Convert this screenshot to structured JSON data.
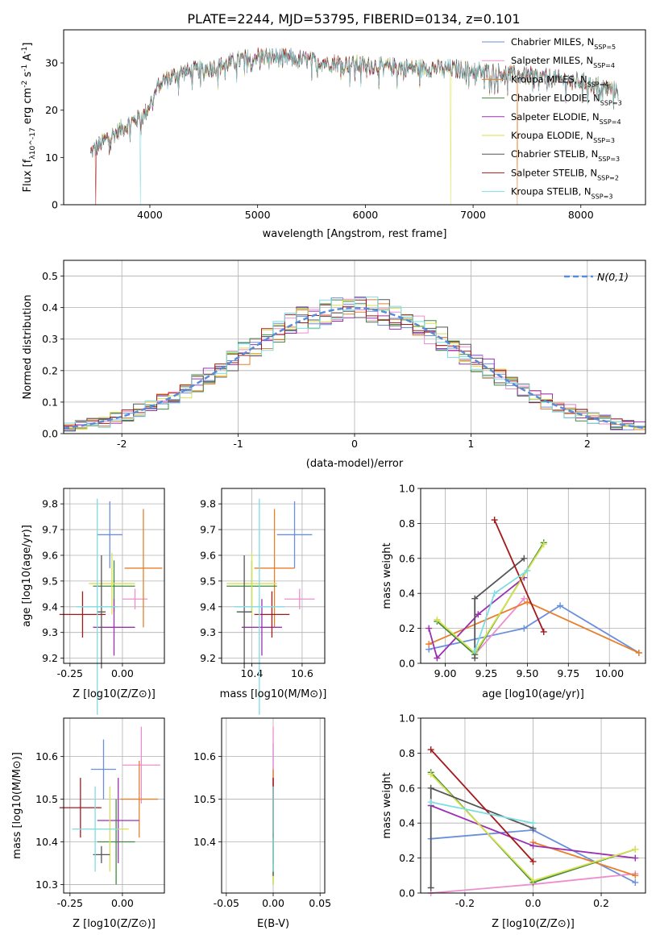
{
  "figure_title": "PLATE=2244, MJD=53795, FIBERID=0134, z=0.101",
  "colors": [
    "#6a8fdd",
    "#ee8ecf",
    "#e87f2a",
    "#3f8a3f",
    "#9b30b0",
    "#d8e24f",
    "#555555",
    "#a5191c",
    "#7edde3"
  ],
  "chart_data": [
    {
      "type": "line",
      "id": "spectrum",
      "xlabel": "wavelength [Angstrom, rest frame]",
      "ylabel": "Flux [f_λ10^-17 erg cm^-2 s^-1 A^-1]",
      "xlim": [
        3200,
        8600
      ],
      "ylim": [
        0,
        37
      ],
      "xticks": [
        4000,
        5000,
        6000,
        7000,
        8000
      ],
      "yticks": [
        0,
        10,
        20,
        30
      ],
      "legend_position": "top-right",
      "continuum_knots_x": [
        3450,
        3600,
        3800,
        3950,
        4100,
        4300,
        4600,
        4800,
        5000,
        5300,
        5600,
        6000,
        6400,
        6800,
        7200,
        7600,
        8000,
        8350
      ],
      "continuum_knots_y": [
        11,
        14,
        17,
        19,
        26,
        28,
        29,
        30.5,
        31.5,
        31,
        30.2,
        29.5,
        29,
        28.8,
        28,
        27,
        26,
        24
      ],
      "series": [
        {
          "name": "Chabrier MILES, N_SSP=5"
        },
        {
          "name": "Salpeter MILES, N_SSP=4"
        },
        {
          "name": "Kroupa MILES, N_SSP=4"
        },
        {
          "name": "Chabrier ELODIE, N_SSP=3"
        },
        {
          "name": "Salpeter ELODIE, N_SSP=4"
        },
        {
          "name": "Kroupa ELODIE, N_SSP=3"
        },
        {
          "name": "Chabrier STELIB, N_SSP=3"
        },
        {
          "name": "Salpeter STELIB, N_SSP=2"
        },
        {
          "name": "Kroupa STELIB, N_SSP=3"
        }
      ]
    },
    {
      "type": "histogram",
      "id": "residuals",
      "xlabel": "(data-model)/error",
      "ylabel": "Normed distribution",
      "xlim": [
        -2.5,
        2.5
      ],
      "ylim": [
        0,
        0.55
      ],
      "xticks": [
        -2,
        -1,
        0,
        1,
        2
      ],
      "yticks": [
        0.0,
        0.1,
        0.2,
        0.3,
        0.4,
        0.5
      ],
      "bins": [
        -2.5,
        2.5,
        50
      ],
      "reference": {
        "name": "N(0,1)",
        "mean": 0,
        "sigma": 1
      },
      "legend_position": "top-right",
      "grid": true
    },
    {
      "type": "errorbar",
      "id": "age_vs_Z",
      "xlabel": "Z [log10(Z/Z⊙)]",
      "ylabel": "age [log10(age/yr)]",
      "xlim": [
        -0.28,
        0.2
      ],
      "ylim": [
        9.18,
        9.86
      ],
      "xticks": [
        -0.25,
        0.0
      ],
      "yticks": [
        9.2,
        9.3,
        9.4,
        9.5,
        9.6,
        9.7,
        9.8
      ],
      "grid": true,
      "points": [
        {
          "x": -0.06,
          "xerr": 0.06,
          "y": 9.68,
          "yerr": 0.13
        },
        {
          "x": 0.06,
          "xerr": 0.06,
          "y": 9.43,
          "yerr": 0.04
        },
        {
          "x": 0.1,
          "xerr": 0.09,
          "y": 9.55,
          "yerr": 0.23
        },
        {
          "x": -0.04,
          "xerr": 0.1,
          "y": 9.48,
          "yerr": 0.1
        },
        {
          "x": -0.04,
          "xerr": 0.1,
          "y": 9.32,
          "yerr": 0.11
        },
        {
          "x": -0.05,
          "xerr": 0.11,
          "y": 9.49,
          "yerr": 0.12
        },
        {
          "x": -0.1,
          "xerr": 0.02,
          "y": 9.38,
          "yerr": 0.22
        },
        {
          "x": -0.19,
          "xerr": 0.11,
          "y": 9.37,
          "yerr": 0.09
        },
        {
          "x": -0.12,
          "xerr": 0.1,
          "y": 9.4,
          "yerr": 0.42
        }
      ]
    },
    {
      "type": "errorbar",
      "id": "age_vs_mass",
      "xlabel": "mass [log10(M/M⊙)]",
      "ylabel": "",
      "xlim": [
        10.28,
        10.69
      ],
      "ylim": [
        9.18,
        9.86
      ],
      "xticks": [
        10.4,
        10.6
      ],
      "yticks": [
        9.2,
        9.3,
        9.4,
        9.5,
        9.6,
        9.7,
        9.8
      ],
      "grid": true,
      "points": [
        {
          "x": 10.57,
          "xerr": 0.07,
          "y": 9.68,
          "yerr": 0.13
        },
        {
          "x": 10.59,
          "xerr": 0.06,
          "y": 9.43,
          "yerr": 0.04
        },
        {
          "x": 10.49,
          "xerr": 0.08,
          "y": 9.55,
          "yerr": 0.23
        },
        {
          "x": 10.4,
          "xerr": 0.1,
          "y": 9.48,
          "yerr": 0.1
        },
        {
          "x": 10.44,
          "xerr": 0.08,
          "y": 9.32,
          "yerr": 0.11
        },
        {
          "x": 10.4,
          "xerr": 0.1,
          "y": 9.49,
          "yerr": 0.12
        },
        {
          "x": 10.37,
          "xerr": 0.03,
          "y": 9.38,
          "yerr": 0.22
        },
        {
          "x": 10.48,
          "xerr": 0.07,
          "y": 9.37,
          "yerr": 0.09
        },
        {
          "x": 10.43,
          "xerr": 0.1,
          "y": 9.4,
          "yerr": 0.42
        }
      ]
    },
    {
      "type": "line",
      "id": "weight_vs_age",
      "xlabel": "age [log10(age/yr)]",
      "ylabel": "mass weight",
      "xlim": [
        8.85,
        10.22
      ],
      "ylim": [
        0,
        1
      ],
      "xticks": [
        9.0,
        9.25,
        9.5,
        9.75,
        10.0
      ],
      "yticks": [
        0.0,
        0.2,
        0.4,
        0.6,
        0.8,
        1.0
      ],
      "grid": true,
      "series": [
        {
          "x": [
            8.9,
            9.48,
            9.7,
            10.18
          ],
          "y": [
            0.08,
            0.2,
            0.33,
            0.06
          ]
        },
        {
          "x": [
            9.18,
            9.48
          ],
          "y": [
            0.05,
            0.37
          ]
        },
        {
          "x": [
            8.9,
            9.5,
            10.18
          ],
          "y": [
            0.11,
            0.35,
            0.06
          ]
        },
        {
          "x": [
            8.95,
            9.18,
            9.6
          ],
          "y": [
            0.24,
            0.05,
            0.69
          ]
        },
        {
          "x": [
            8.9,
            8.95,
            9.2,
            9.48
          ],
          "y": [
            0.2,
            0.03,
            0.28,
            0.49
          ]
        },
        {
          "x": [
            8.95,
            9.18,
            9.6
          ],
          "y": [
            0.25,
            0.06,
            0.68
          ]
        },
        {
          "x": [
            9.18,
            9.18,
            9.48
          ],
          "y": [
            0.03,
            0.37,
            0.6
          ]
        },
        {
          "x": [
            9.3,
            9.6
          ],
          "y": [
            0.82,
            0.18
          ]
        },
        {
          "x": [
            9.18,
            9.3,
            9.5
          ],
          "y": [
            0.07,
            0.4,
            0.53
          ]
        }
      ]
    },
    {
      "type": "errorbar",
      "id": "mass_vs_Z",
      "xlabel": "Z [log10(Z/Z⊙)]",
      "ylabel": "mass [log10(M/M⊙)]",
      "xlim": [
        -0.28,
        0.2
      ],
      "ylim": [
        10.28,
        10.69
      ],
      "xticks": [
        -0.25,
        0.0
      ],
      "yticks": [
        10.3,
        10.4,
        10.5,
        10.6
      ],
      "grid": true,
      "points": [
        {
          "x": -0.09,
          "xerr": 0.06,
          "y": 10.57,
          "yerr": 0.07
        },
        {
          "x": 0.09,
          "xerr": 0.09,
          "y": 10.58,
          "yerr": 0.09
        },
        {
          "x": 0.08,
          "xerr": 0.09,
          "y": 10.5,
          "yerr": 0.09
        },
        {
          "x": -0.03,
          "xerr": 0.09,
          "y": 10.4,
          "yerr": 0.1
        },
        {
          "x": -0.02,
          "xerr": 0.1,
          "y": 10.45,
          "yerr": 0.1
        },
        {
          "x": -0.06,
          "xerr": 0.09,
          "y": 10.43,
          "yerr": 0.1
        },
        {
          "x": -0.1,
          "xerr": 0.04,
          "y": 10.37,
          "yerr": 0.02
        },
        {
          "x": -0.2,
          "xerr": 0.1,
          "y": 10.48,
          "yerr": 0.07
        },
        {
          "x": -0.13,
          "xerr": 0.11,
          "y": 10.43,
          "yerr": 0.1
        }
      ]
    },
    {
      "type": "errorbar",
      "id": "mass_vs_ebv",
      "xlabel": "E(B-V)",
      "ylabel": "",
      "xlim": [
        -0.055,
        0.055
      ],
      "ylim": [
        10.28,
        10.69
      ],
      "xticks": [
        -0.05,
        0.0,
        0.05
      ],
      "yticks": [
        10.4,
        10.5,
        10.6
      ],
      "grid": true,
      "points": [
        {
          "x": 0,
          "xerr": 0,
          "y": 10.57,
          "yerr": 0.06
        },
        {
          "x": 0,
          "xerr": 0,
          "y": 10.58,
          "yerr": 0.09
        },
        {
          "x": 0,
          "xerr": 0,
          "y": 10.49,
          "yerr": 0.08
        },
        {
          "x": 0,
          "xerr": 0,
          "y": 10.4,
          "yerr": 0.1
        },
        {
          "x": 0,
          "xerr": 0,
          "y": 10.45,
          "yerr": 0.1
        },
        {
          "x": 0,
          "xerr": 0,
          "y": 10.4,
          "yerr": 0.1
        },
        {
          "x": 0,
          "xerr": 0,
          "y": 10.37,
          "yerr": 0.05
        },
        {
          "x": 0,
          "xerr": 0,
          "y": 10.48,
          "yerr": 0.07
        },
        {
          "x": 0,
          "xerr": 0,
          "y": 10.43,
          "yerr": 0.1
        }
      ]
    },
    {
      "type": "line",
      "id": "weight_vs_Z",
      "xlabel": "Z [log10(Z/Z⊙)]",
      "ylabel": "mass weight",
      "xlim": [
        -0.33,
        0.33
      ],
      "ylim": [
        0,
        1
      ],
      "xticks": [
        -0.2,
        0.0,
        0.2
      ],
      "yticks": [
        0.0,
        0.2,
        0.4,
        0.6,
        0.8,
        1.0
      ],
      "grid": true,
      "series": [
        {
          "x": [
            -0.3,
            0.0,
            0.3
          ],
          "y": [
            0.31,
            0.36,
            0.06
          ]
        },
        {
          "x": [
            -0.3,
            0.0,
            0.3
          ],
          "y": [
            0.0,
            0.05,
            0.11
          ]
        },
        {
          "x": [
            0.0,
            0.3
          ],
          "y": [
            0.29,
            0.1
          ]
        },
        {
          "x": [
            -0.3,
            0.0,
            0.3
          ],
          "y": [
            0.69,
            0.06,
            0.25
          ]
        },
        {
          "x": [
            -0.3,
            0.0,
            0.3
          ],
          "y": [
            0.5,
            0.27,
            0.2
          ]
        },
        {
          "x": [
            -0.3,
            0.0,
            0.3
          ],
          "y": [
            0.68,
            0.07,
            0.25
          ]
        },
        {
          "x": [
            -0.3,
            -0.3,
            0.0
          ],
          "y": [
            0.03,
            0.6,
            0.37
          ]
        },
        {
          "x": [
            -0.3,
            0.0
          ],
          "y": [
            0.82,
            0.18
          ]
        },
        {
          "x": [
            -0.3,
            0.0
          ],
          "y": [
            0.52,
            0.4
          ]
        }
      ]
    }
  ]
}
